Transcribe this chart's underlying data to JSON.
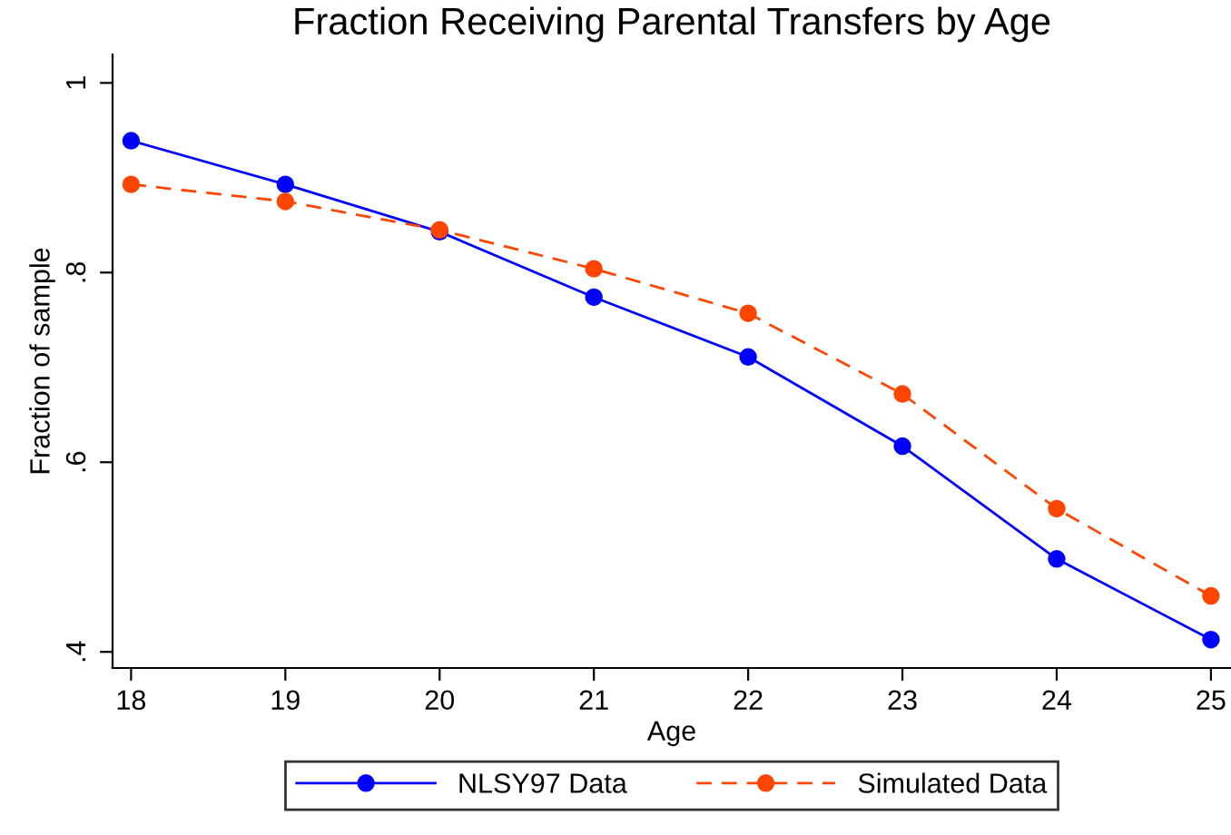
{
  "chart_data": {
    "type": "line",
    "title": "Fraction Receiving Parental Transfers by Age",
    "xlabel": "Age",
    "ylabel": "Fraction of sample",
    "x": [
      18,
      19,
      20,
      21,
      22,
      23,
      24,
      25
    ],
    "series": [
      {
        "name": "NLSY97 Data",
        "color": "#0000ff",
        "line_style": "solid",
        "values": [
          0.939,
          0.893,
          0.843,
          0.774,
          0.711,
          0.617,
          0.498,
          0.413
        ]
      },
      {
        "name": "Simulated Data",
        "color": "#ff4500",
        "line_style": "dashed",
        "values": [
          0.893,
          0.875,
          0.845,
          0.804,
          0.757,
          0.672,
          0.551,
          0.459
        ]
      }
    ],
    "xlim": [
      17.88,
      25.13
    ],
    "xticks": [
      18,
      19,
      20,
      21,
      22,
      23,
      24,
      25
    ],
    "ylim": [
      0.383,
      1.03
    ],
    "yticks": [
      {
        "value": 0.4,
        "label": ".4"
      },
      {
        "value": 0.6,
        "label": ".6"
      },
      {
        "value": 0.8,
        "label": ".8"
      },
      {
        "value": 1,
        "label": "1"
      }
    ],
    "grid": false,
    "legend": "bottom",
    "marker": "circle"
  }
}
